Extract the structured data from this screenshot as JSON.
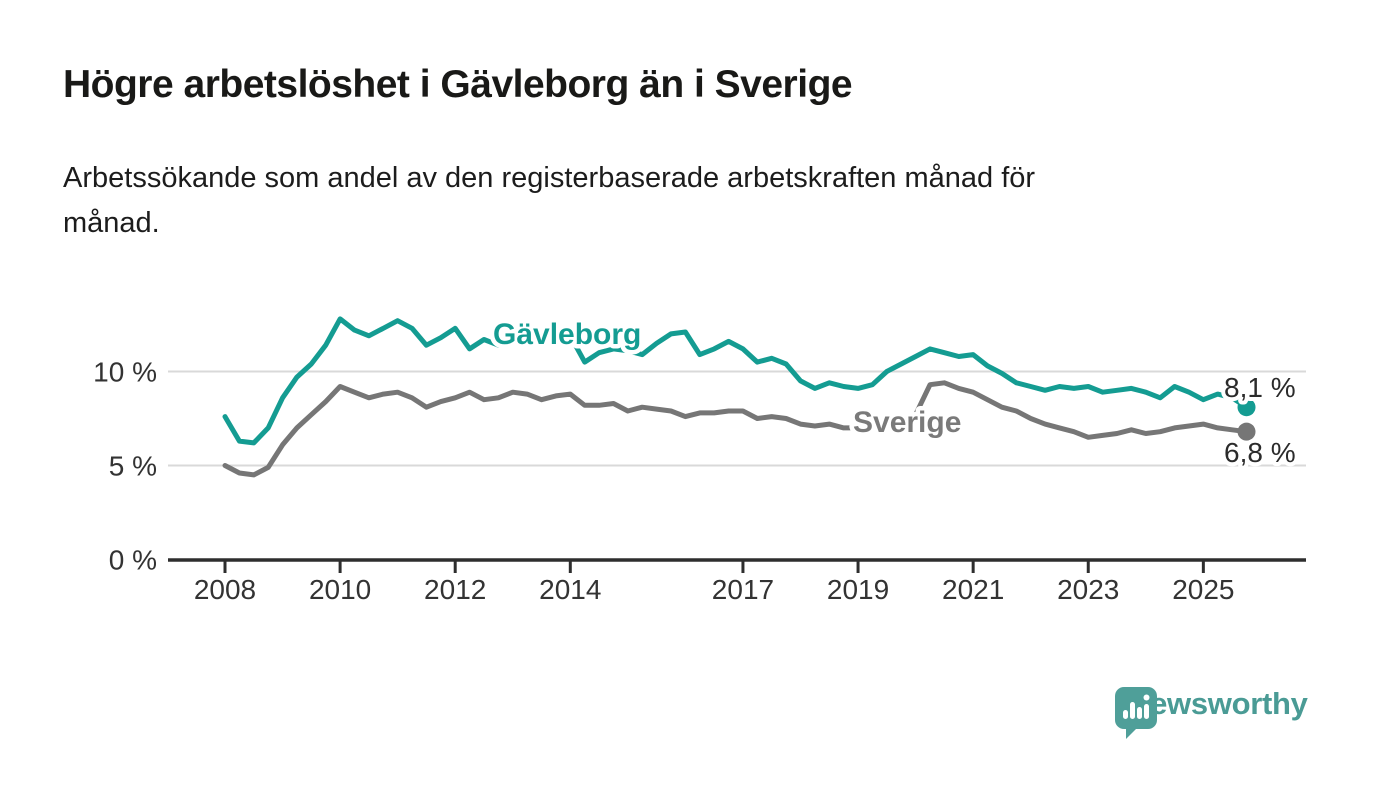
{
  "header": {
    "title": "Högre arbetslöshet i Gävleborg än i Sverige",
    "subtitle_line1": "Arbetssökande som andel av den registerbaserade arbetskraften månad för",
    "subtitle_line2": "månad."
  },
  "chart_data": {
    "type": "line",
    "title": "Högre arbetslöshet i Gävleborg än i Sverige",
    "subtitle": "Arbetssökande som andel av den registerbaserade arbetskraften månad för månad.",
    "xlabel": "",
    "ylabel": "",
    "x_unit": "year (quarterly samples, Jan 2008 - Nov 2025)",
    "xlim": [
      2007.0,
      2026.8
    ],
    "ylim": [
      0,
      13.5
    ],
    "grid": "horizontal gridlines at 5 % and 10 %",
    "legend_position": "inline labels on lines",
    "x": [
      2008.0,
      2008.25,
      2008.5,
      2008.75,
      2009.0,
      2009.25,
      2009.5,
      2009.75,
      2010.0,
      2010.25,
      2010.5,
      2010.75,
      2011.0,
      2011.25,
      2011.5,
      2011.75,
      2012.0,
      2012.25,
      2012.5,
      2012.75,
      2013.0,
      2013.25,
      2013.5,
      2013.75,
      2014.0,
      2014.25,
      2014.5,
      2014.75,
      2015.0,
      2015.25,
      2015.5,
      2015.75,
      2016.0,
      2016.25,
      2016.5,
      2016.75,
      2017.0,
      2017.25,
      2017.5,
      2017.75,
      2018.0,
      2018.25,
      2018.5,
      2018.75,
      2019.0,
      2019.25,
      2019.5,
      2019.75,
      2020.0,
      2020.25,
      2020.5,
      2020.75,
      2021.0,
      2021.25,
      2021.5,
      2021.75,
      2022.0,
      2022.25,
      2022.5,
      2022.75,
      2023.0,
      2023.25,
      2023.5,
      2023.75,
      2024.0,
      2024.25,
      2024.5,
      2024.75,
      2025.0,
      2025.25,
      2025.5,
      2025.75
    ],
    "series": [
      {
        "name": "Gävleborg",
        "color": "#149c92",
        "end_label": "8,1 %",
        "end_value": 8.1,
        "values": [
          7.6,
          6.3,
          6.2,
          7.0,
          8.6,
          9.7,
          10.4,
          11.4,
          12.8,
          12.2,
          11.9,
          12.3,
          12.7,
          12.3,
          11.4,
          11.8,
          12.3,
          11.2,
          11.7,
          11.4,
          11.6,
          11.9,
          11.4,
          11.7,
          11.9,
          10.5,
          11.0,
          11.2,
          11.1,
          10.9,
          11.5,
          12.0,
          12.1,
          10.9,
          11.2,
          11.6,
          11.2,
          10.5,
          10.7,
          10.4,
          9.5,
          9.1,
          9.4,
          9.2,
          9.1,
          9.3,
          10.0,
          10.4,
          10.8,
          11.2,
          11.0,
          10.8,
          10.9,
          10.3,
          9.9,
          9.4,
          9.2,
          9.0,
          9.2,
          9.1,
          9.2,
          8.9,
          9.0,
          9.1,
          8.9,
          8.6,
          9.2,
          8.9,
          8.5,
          8.8,
          8.6,
          8.1
        ]
      },
      {
        "name": "Sverige",
        "color": "#767676",
        "end_label": "6,8 %",
        "end_value": 6.8,
        "values": [
          5.0,
          4.6,
          4.5,
          4.9,
          6.1,
          7.0,
          7.7,
          8.4,
          9.2,
          8.9,
          8.6,
          8.8,
          8.9,
          8.6,
          8.1,
          8.4,
          8.6,
          8.9,
          8.5,
          8.6,
          8.9,
          8.8,
          8.5,
          8.7,
          8.8,
          8.2,
          8.2,
          8.3,
          7.9,
          8.1,
          8.0,
          7.9,
          7.6,
          7.8,
          7.8,
          7.9,
          7.9,
          7.5,
          7.6,
          7.5,
          7.2,
          7.1,
          7.2,
          7.0,
          7.0,
          6.9,
          7.0,
          7.2,
          7.7,
          9.3,
          9.4,
          9.1,
          8.9,
          8.5,
          8.1,
          7.9,
          7.5,
          7.2,
          7.0,
          6.8,
          6.5,
          6.6,
          6.7,
          6.9,
          6.7,
          6.8,
          7.0,
          7.1,
          7.2,
          7.0,
          6.9,
          6.8
        ]
      }
    ],
    "y_ticks": [
      {
        "value": 0,
        "label": "0 %"
      },
      {
        "value": 5,
        "label": "5 %"
      },
      {
        "value": 10,
        "label": "10 %"
      }
    ],
    "x_ticks": [
      {
        "value": 2008,
        "label": "2008"
      },
      {
        "value": 2010,
        "label": "2010"
      },
      {
        "value": 2012,
        "label": "2012"
      },
      {
        "value": 2014,
        "label": "2014"
      },
      {
        "value": 2017,
        "label": "2017"
      },
      {
        "value": 2019,
        "label": "2019"
      },
      {
        "value": 2021,
        "label": "2021"
      },
      {
        "value": 2023,
        "label": "2023"
      },
      {
        "value": 2025,
        "label": "2025"
      }
    ]
  },
  "footer": {
    "brand": "Newsworthy",
    "logo_icon": "bar-chart-speech-bubble-icon"
  },
  "colors": {
    "gavleborg_line": "#149c92",
    "sverige_line": "#767676",
    "gridline": "#d9d9d9",
    "axis": "#2e2e2e",
    "tick_text": "#333333",
    "title_text": "#191917",
    "brand_teal": "#4a9b95"
  }
}
